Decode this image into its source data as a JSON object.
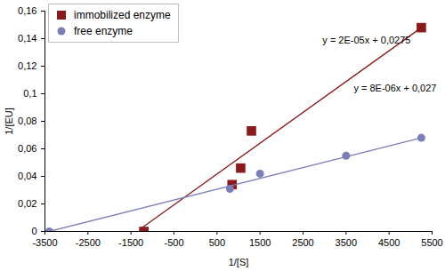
{
  "chart_data": {
    "type": "scatter",
    "x_label": "1/[S]",
    "y_label": "1/[EU]",
    "xlim": [
      -3500,
      5500
    ],
    "xticks": [
      -3500,
      -2500,
      -1500,
      -500,
      500,
      1500,
      2500,
      3500,
      4500,
      5500
    ],
    "ylim": [
      0,
      0.16
    ],
    "yticks": [
      0,
      {
        "value": 0.02,
        "label": "0,02"
      },
      {
        "value": 0.04,
        "label": "0,04"
      },
      {
        "value": 0.06,
        "label": "0,06"
      },
      {
        "value": 0.08,
        "label": "0,08"
      },
      {
        "value": 0.1,
        "label": "0,1"
      },
      {
        "value": 0.12,
        "label": "0,12"
      },
      {
        "value": 0.14,
        "label": "0,14"
      },
      {
        "value": 0.16,
        "label": "0,16"
      }
    ],
    "grid": false,
    "legend": "top-left",
    "series": [
      {
        "name": "immobilized enzyme",
        "color": "#8b1a1a",
        "marker": "square",
        "x": [
          -1200,
          850,
          1050,
          1300,
          5250
        ],
        "values": [
          0,
          0.034,
          0.046,
          0.073,
          0.148
        ],
        "trend_x": [
          -1300,
          5250
        ],
        "trend_values": [
          0.0015,
          0.148
        ],
        "equation": "y = 2E-05x + 0,0275"
      },
      {
        "name": "free enzyme",
        "color": "#7b7fb8",
        "marker": "circle",
        "x": [
          -3400,
          800,
          1500,
          3500,
          5250
        ],
        "values": [
          0,
          0.031,
          0.042,
          0.055,
          0.068
        ],
        "trend_x": [
          -3400,
          5250
        ],
        "trend_values": [
          0,
          0.068
        ],
        "equation": "y = 8E-06x + 0,027"
      }
    ]
  }
}
